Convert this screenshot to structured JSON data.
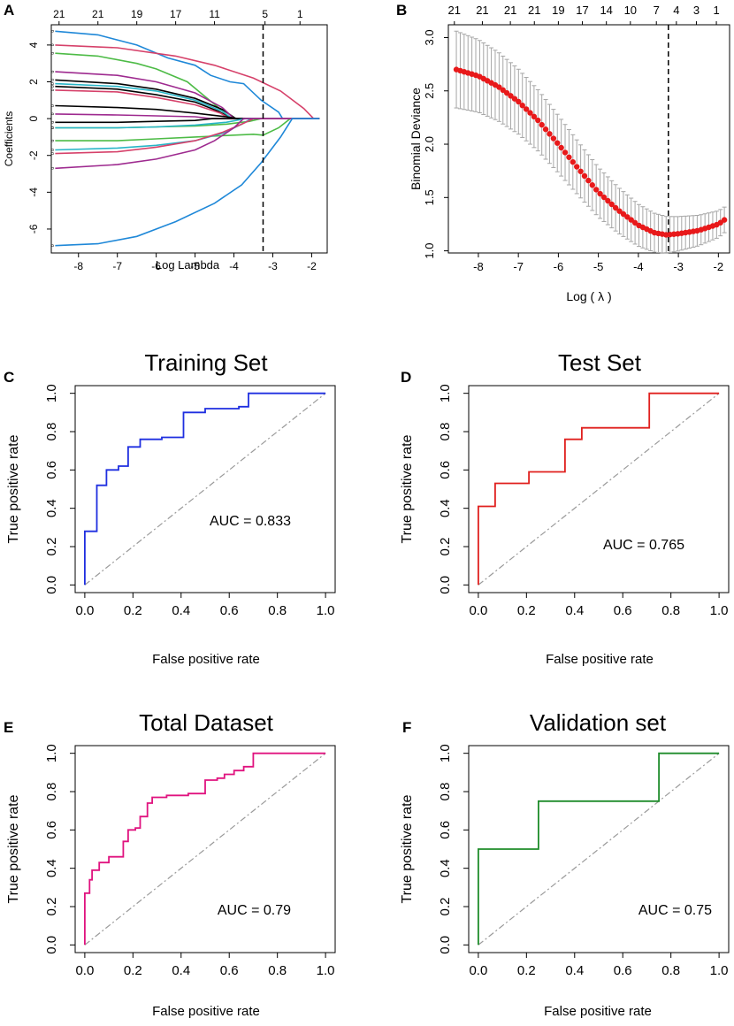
{
  "figure": {
    "panel_labels": [
      "A",
      "B",
      "C",
      "D",
      "E",
      "F"
    ]
  },
  "chart_data": [
    {
      "panel": "A",
      "type": "line",
      "title": "",
      "xlabel": "Log Lambda",
      "ylabel": "Coefficients",
      "xlim": [
        -8.7,
        -1.6
      ],
      "ylim": [
        -7.3,
        5.1
      ],
      "xticks": [
        -8,
        -7,
        -6,
        -5,
        -4,
        -3,
        -2
      ],
      "yticks": [
        -6,
        -4,
        -2,
        0,
        2,
        4
      ],
      "top_axis_x": [
        -8.5,
        -7.5,
        -6.5,
        -5.5,
        -4.5,
        -3.2,
        -2.3
      ],
      "top_axis_labels": [
        "21",
        "21",
        "19",
        "17",
        "11",
        "5",
        "1"
      ],
      "vline_x": -3.25,
      "series": [
        {
          "color": "#1f88d8",
          "points": [
            [
              -8.6,
              4.75
            ],
            [
              -7.5,
              4.55
            ],
            [
              -6.5,
              4.0
            ],
            [
              -5.7,
              3.3
            ],
            [
              -5.0,
              2.9
            ],
            [
              -4.6,
              2.35
            ],
            [
              -4.1,
              2.0
            ],
            [
              -3.75,
              1.9
            ],
            [
              -3.3,
              1.0
            ],
            [
              -2.85,
              0.35
            ],
            [
              -2.75,
              0
            ]
          ]
        },
        {
          "color": "#d6416a",
          "points": [
            [
              -8.6,
              4.0
            ],
            [
              -7.0,
              3.85
            ],
            [
              -5.5,
              3.4
            ],
            [
              -4.5,
              2.9
            ],
            [
              -3.5,
              2.2
            ],
            [
              -2.8,
              1.5
            ],
            [
              -2.2,
              0.55
            ],
            [
              -1.95,
              0
            ]
          ]
        },
        {
          "color": "#4dbb46",
          "points": [
            [
              -8.6,
              3.55
            ],
            [
              -7.5,
              3.4
            ],
            [
              -6.5,
              3.0
            ],
            [
              -6.0,
              2.7
            ],
            [
              -5.2,
              2.0
            ],
            [
              -4.8,
              1.3
            ],
            [
              -4.4,
              0.6
            ],
            [
              -4.1,
              0
            ]
          ]
        },
        {
          "color": "#000000",
          "points": [
            [
              -8.6,
              2.1
            ],
            [
              -7.0,
              1.9
            ],
            [
              -6.0,
              1.6
            ],
            [
              -5.0,
              1.1
            ],
            [
              -4.3,
              0.5
            ],
            [
              -3.95,
              0
            ]
          ]
        },
        {
          "color": "#000000",
          "points": [
            [
              -8.6,
              1.75
            ],
            [
              -7.0,
              1.6
            ],
            [
              -6.0,
              1.3
            ],
            [
              -5.0,
              0.9
            ],
            [
              -4.4,
              0.4
            ],
            [
              -4.05,
              0
            ]
          ]
        },
        {
          "color": "#9e2a8f",
          "points": [
            [
              -8.6,
              2.55
            ],
            [
              -7.0,
              2.35
            ],
            [
              -6.0,
              2.0
            ],
            [
              -5.0,
              1.4
            ],
            [
              -4.3,
              0.6
            ],
            [
              -4.0,
              0
            ]
          ]
        },
        {
          "color": "#28b5c7",
          "points": [
            [
              -8.6,
              1.9
            ],
            [
              -7.0,
              1.75
            ],
            [
              -6.0,
              1.5
            ],
            [
              -5.0,
              1.0
            ],
            [
              -4.3,
              0.4
            ],
            [
              -4.05,
              0
            ]
          ]
        },
        {
          "color": "#d6416a",
          "points": [
            [
              -8.6,
              1.55
            ],
            [
              -7.0,
              1.45
            ],
            [
              -6.0,
              1.15
            ],
            [
              -5.0,
              0.75
            ],
            [
              -4.35,
              0.3
            ],
            [
              -4.1,
              0
            ]
          ]
        },
        {
          "color": "#000000",
          "points": [
            [
              -8.6,
              0.7
            ],
            [
              -7.0,
              0.6
            ],
            [
              -6.0,
              0.5
            ],
            [
              -5.0,
              0.3
            ],
            [
              -4.2,
              0.1
            ],
            [
              -3.9,
              0
            ]
          ]
        },
        {
          "color": "#9e2a8f",
          "points": [
            [
              -8.6,
              0.25
            ],
            [
              -7.0,
              0.2
            ],
            [
              -6.0,
              0.15
            ],
            [
              -5.0,
              0.1
            ],
            [
              -4.6,
              0
            ]
          ]
        },
        {
          "color": "#000000",
          "points": [
            [
              -8.6,
              -0.2
            ],
            [
              -7.0,
              -0.2
            ],
            [
              -6.0,
              -0.15
            ],
            [
              -5.0,
              -0.1
            ],
            [
              -4.55,
              0
            ]
          ]
        },
        {
          "color": "#4dbb46",
          "points": [
            [
              -8.6,
              -0.5
            ],
            [
              -7.0,
              -0.5
            ],
            [
              -6.0,
              -0.45
            ],
            [
              -5.0,
              -0.4
            ],
            [
              -4.2,
              -0.3
            ],
            [
              -3.6,
              -0.15
            ],
            [
              -3.3,
              0
            ]
          ]
        },
        {
          "color": "#28b5c7",
          "points": [
            [
              -8.6,
              -0.5
            ],
            [
              -7.0,
              -0.5
            ],
            [
              -6.0,
              -0.45
            ],
            [
              -5.0,
              -0.35
            ],
            [
              -4.2,
              -0.2
            ],
            [
              -3.7,
              0
            ]
          ]
        },
        {
          "color": "#4dbb46",
          "points": [
            [
              -8.6,
              -1.2
            ],
            [
              -7.0,
              -1.2
            ],
            [
              -6.0,
              -1.1
            ],
            [
              -5.0,
              -1.0
            ],
            [
              -4.0,
              -0.9
            ],
            [
              -3.5,
              -0.85
            ],
            [
              -3.25,
              -0.9
            ],
            [
              -2.85,
              -0.5
            ],
            [
              -2.55,
              0
            ]
          ]
        },
        {
          "color": "#28b5c7",
          "points": [
            [
              -8.6,
              -1.7
            ],
            [
              -7.0,
              -1.6
            ],
            [
              -6.0,
              -1.45
            ],
            [
              -5.0,
              -1.2
            ],
            [
              -4.3,
              -0.8
            ],
            [
              -3.8,
              -0.3
            ],
            [
              -3.55,
              0
            ]
          ]
        },
        {
          "color": "#d6416a",
          "points": [
            [
              -8.6,
              -1.9
            ],
            [
              -7.0,
              -1.8
            ],
            [
              -6.0,
              -1.55
            ],
            [
              -5.0,
              -1.2
            ],
            [
              -4.3,
              -0.75
            ],
            [
              -3.8,
              -0.3
            ],
            [
              -3.5,
              0
            ]
          ]
        },
        {
          "color": "#9e2a8f",
          "points": [
            [
              -8.6,
              -2.7
            ],
            [
              -7.0,
              -2.5
            ],
            [
              -6.0,
              -2.2
            ],
            [
              -5.0,
              -1.7
            ],
            [
              -4.5,
              -1.2
            ],
            [
              -4.0,
              -0.5
            ],
            [
              -3.75,
              0
            ]
          ]
        },
        {
          "color": "#1f88d8",
          "points": [
            [
              -8.6,
              -6.9
            ],
            [
              -7.5,
              -6.8
            ],
            [
              -6.5,
              -6.4
            ],
            [
              -5.5,
              -5.6
            ],
            [
              -4.5,
              -4.6
            ],
            [
              -3.8,
              -3.6
            ],
            [
              -3.3,
              -2.4
            ],
            [
              -2.8,
              -1.0
            ],
            [
              -2.5,
              0
            ]
          ]
        }
      ]
    },
    {
      "panel": "B",
      "type": "scatter",
      "title": "",
      "xlabel": "Log ( λ )",
      "ylabel": "Binomial Deviance",
      "xlim": [
        -8.75,
        -1.72
      ],
      "ylim": [
        0.98,
        3.12
      ],
      "xticks": [
        -8,
        -7,
        -6,
        -5,
        -4,
        -3,
        -2
      ],
      "yticks": [
        1.0,
        1.5,
        2.0,
        2.5,
        3.0
      ],
      "top_axis_x": [
        -8.6,
        -7.9,
        -7.2,
        -6.6,
        -6.0,
        -5.4,
        -4.8,
        -4.2,
        -3.55,
        -3.05,
        -2.55,
        -2.05
      ],
      "top_axis_labels": [
        "21",
        "21",
        "21",
        "21",
        "19",
        "17",
        "14",
        "10",
        "7",
        "4",
        "3",
        "1"
      ],
      "vline_x": -3.25,
      "x_range": [
        -8.55,
        -1.85
      ],
      "n_points": 70,
      "curve_points": [
        [
          -8.55,
          2.7
        ],
        [
          -8.0,
          2.64
        ],
        [
          -7.5,
          2.54
        ],
        [
          -7.0,
          2.4
        ],
        [
          -6.5,
          2.22
        ],
        [
          -6.0,
          2.0
        ],
        [
          -5.5,
          1.77
        ],
        [
          -5.0,
          1.55
        ],
        [
          -4.5,
          1.38
        ],
        [
          -4.0,
          1.24
        ],
        [
          -3.6,
          1.17
        ],
        [
          -3.3,
          1.15
        ],
        [
          -3.0,
          1.16
        ],
        [
          -2.5,
          1.19
        ],
        [
          -2.0,
          1.25
        ],
        [
          -1.85,
          1.29
        ]
      ],
      "error_half_width_start": 0.36,
      "error_half_width_end": 0.12,
      "point_color": "#e8191a",
      "error_color": "#a6a6a6"
    },
    {
      "panel": "C",
      "type": "line",
      "title": "Training Set",
      "xlabel": "False positive rate",
      "ylabel": "True positive rate",
      "xlim": [
        -0.04,
        1.04
      ],
      "ylim": [
        -0.04,
        1.04
      ],
      "xticks": [
        0.0,
        0.2,
        0.4,
        0.6,
        0.8,
        1.0
      ],
      "yticks": [
        0.0,
        0.2,
        0.4,
        0.6,
        0.8,
        1.0
      ],
      "auc_label": "AUC = 0.833",
      "color": "#1f2fe0",
      "points": [
        [
          0,
          0
        ],
        [
          0,
          0.28
        ],
        [
          0.05,
          0.28
        ],
        [
          0.05,
          0.52
        ],
        [
          0.09,
          0.52
        ],
        [
          0.09,
          0.6
        ],
        [
          0.14,
          0.6
        ],
        [
          0.14,
          0.62
        ],
        [
          0.18,
          0.62
        ],
        [
          0.18,
          0.72
        ],
        [
          0.23,
          0.72
        ],
        [
          0.23,
          0.76
        ],
        [
          0.32,
          0.76
        ],
        [
          0.32,
          0.77
        ],
        [
          0.41,
          0.77
        ],
        [
          0.41,
          0.9
        ],
        [
          0.5,
          0.9
        ],
        [
          0.5,
          0.92
        ],
        [
          0.64,
          0.92
        ],
        [
          0.64,
          0.93
        ],
        [
          0.68,
          0.93
        ],
        [
          0.68,
          1.0
        ],
        [
          1.0,
          1.0
        ]
      ]
    },
    {
      "panel": "D",
      "type": "line",
      "title": "Test Set",
      "xlabel": "False positive rate",
      "ylabel": "True positive rate",
      "xlim": [
        -0.04,
        1.04
      ],
      "ylim": [
        -0.04,
        1.04
      ],
      "xticks": [
        0.0,
        0.2,
        0.4,
        0.6,
        0.8,
        1.0
      ],
      "yticks": [
        0.0,
        0.2,
        0.4,
        0.6,
        0.8,
        1.0
      ],
      "auc_label": "AUC = 0.765",
      "color": "#e0201e",
      "points": [
        [
          0,
          0
        ],
        [
          0,
          0.41
        ],
        [
          0.07,
          0.41
        ],
        [
          0.07,
          0.53
        ],
        [
          0.21,
          0.53
        ],
        [
          0.21,
          0.59
        ],
        [
          0.36,
          0.59
        ],
        [
          0.36,
          0.76
        ],
        [
          0.43,
          0.76
        ],
        [
          0.43,
          0.82
        ],
        [
          0.71,
          0.82
        ],
        [
          0.71,
          1.0
        ],
        [
          1.0,
          1.0
        ]
      ]
    },
    {
      "panel": "E",
      "type": "line",
      "title": "Total Dataset",
      "xlabel": "False positive rate",
      "ylabel": "True positive rate",
      "xlim": [
        -0.04,
        1.04
      ],
      "ylim": [
        -0.04,
        1.04
      ],
      "xticks": [
        0.0,
        0.2,
        0.4,
        0.6,
        0.8,
        1.0
      ],
      "yticks": [
        0.0,
        0.2,
        0.4,
        0.6,
        0.8,
        1.0
      ],
      "auc_label": "AUC = 0.79",
      "color": "#e0137f",
      "points": [
        [
          0,
          0
        ],
        [
          0,
          0.27
        ],
        [
          0.02,
          0.27
        ],
        [
          0.02,
          0.34
        ],
        [
          0.03,
          0.34
        ],
        [
          0.03,
          0.39
        ],
        [
          0.06,
          0.39
        ],
        [
          0.06,
          0.43
        ],
        [
          0.1,
          0.43
        ],
        [
          0.1,
          0.46
        ],
        [
          0.16,
          0.46
        ],
        [
          0.16,
          0.54
        ],
        [
          0.18,
          0.54
        ],
        [
          0.18,
          0.6
        ],
        [
          0.21,
          0.6
        ],
        [
          0.21,
          0.61
        ],
        [
          0.23,
          0.61
        ],
        [
          0.23,
          0.67
        ],
        [
          0.26,
          0.67
        ],
        [
          0.26,
          0.74
        ],
        [
          0.28,
          0.74
        ],
        [
          0.28,
          0.77
        ],
        [
          0.34,
          0.77
        ],
        [
          0.34,
          0.78
        ],
        [
          0.43,
          0.78
        ],
        [
          0.43,
          0.79
        ],
        [
          0.5,
          0.79
        ],
        [
          0.5,
          0.86
        ],
        [
          0.55,
          0.86
        ],
        [
          0.55,
          0.87
        ],
        [
          0.58,
          0.87
        ],
        [
          0.58,
          0.89
        ],
        [
          0.62,
          0.89
        ],
        [
          0.62,
          0.91
        ],
        [
          0.66,
          0.91
        ],
        [
          0.66,
          0.93
        ],
        [
          0.7,
          0.93
        ],
        [
          0.7,
          1.0
        ],
        [
          1.0,
          1.0
        ]
      ]
    },
    {
      "panel": "F",
      "type": "line",
      "title": "Validation set",
      "xlabel": "False positive rate",
      "ylabel": "True positive rate",
      "xlim": [
        -0.04,
        1.04
      ],
      "ylim": [
        -0.04,
        1.04
      ],
      "xticks": [
        0.0,
        0.2,
        0.4,
        0.6,
        0.8,
        1.0
      ],
      "yticks": [
        0.0,
        0.2,
        0.4,
        0.6,
        0.8,
        1.0
      ],
      "auc_label": "AUC = 0.75",
      "color": "#1e8c2a",
      "points": [
        [
          0,
          0
        ],
        [
          0,
          0.5
        ],
        [
          0.25,
          0.5
        ],
        [
          0.25,
          0.75
        ],
        [
          0.75,
          0.75
        ],
        [
          0.75,
          1.0
        ],
        [
          1.0,
          1.0
        ]
      ]
    }
  ]
}
